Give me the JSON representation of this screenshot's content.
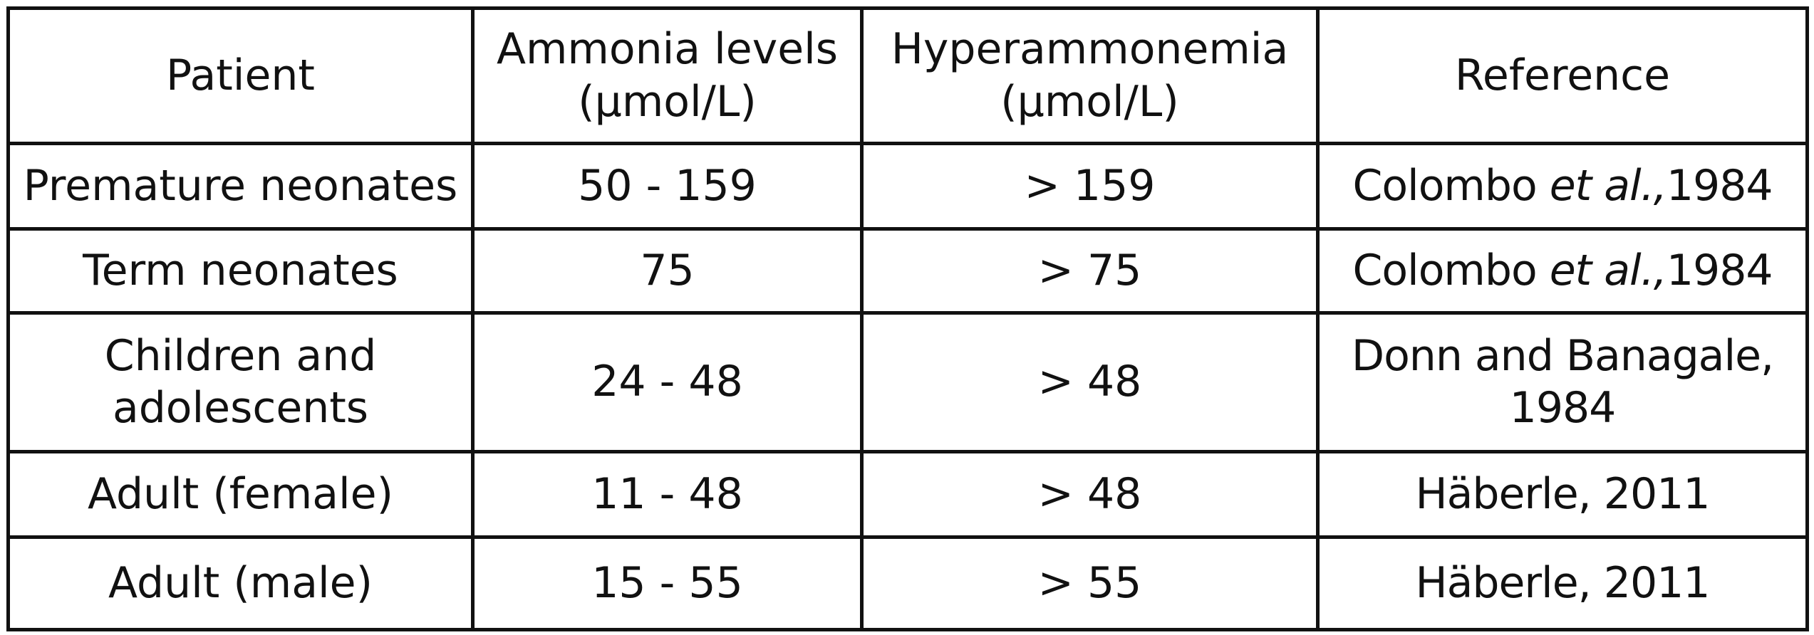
{
  "table": {
    "headers": [
      "Patient",
      "Ammonia levels\n(µmol/L)",
      "Hyperammonemia\n(µmol/L)",
      "Reference"
    ],
    "rows": [
      {
        "patient": "Premature neonates",
        "ammonia": "50 - 159",
        "hyper": "> 159",
        "ref_author": "Colombo ",
        "ref_etal": "et al.,",
        "ref_year": "1984"
      },
      {
        "patient": "Term neonates",
        "ammonia": "75",
        "hyper": "> 75",
        "ref_author": "Colombo ",
        "ref_etal": "et al.,",
        "ref_year": "1984"
      },
      {
        "patient": "Children and\nadolescents",
        "ammonia": "24 - 48",
        "hyper": "> 48",
        "ref": "Donn and Banagale,\n1984"
      },
      {
        "patient": "Adult (female)",
        "ammonia": "11 - 48",
        "hyper": "> 48",
        "ref": "Häberle, 2011"
      },
      {
        "patient": "Adult (male)",
        "ammonia": "15 - 55",
        "hyper": "> 55",
        "ref": "Häberle, 2011"
      }
    ]
  }
}
